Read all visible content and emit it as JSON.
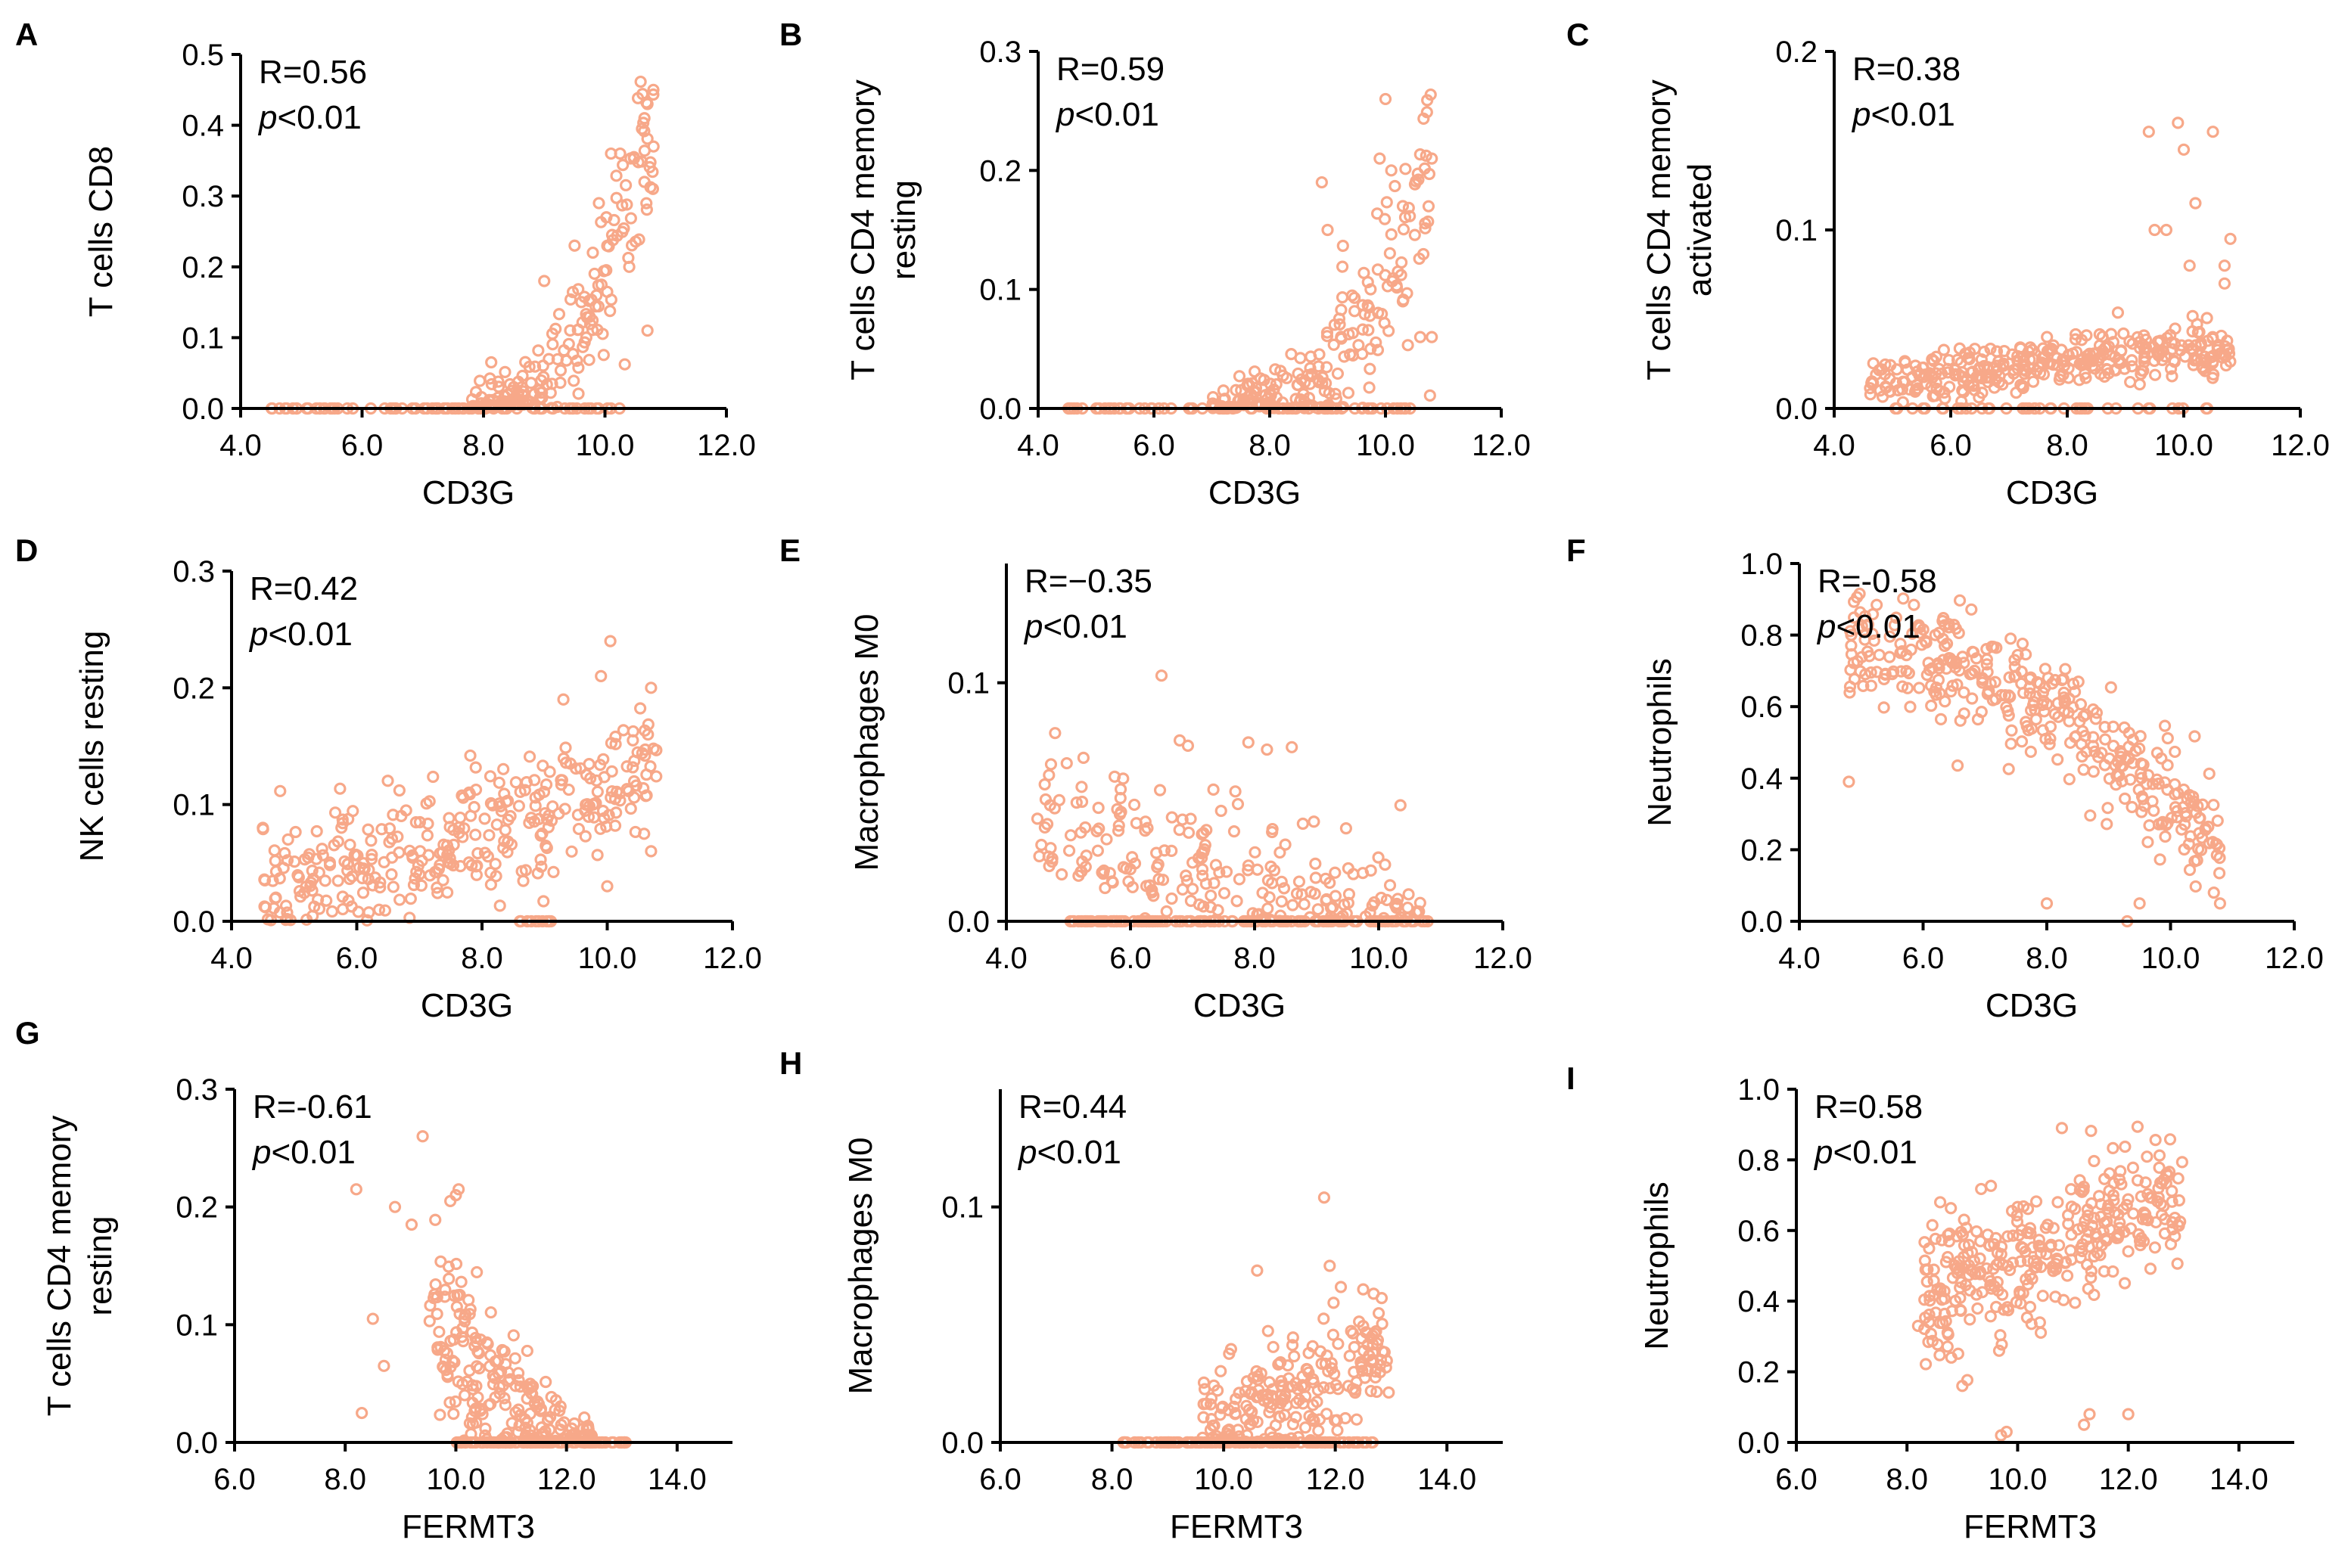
{
  "figure": {
    "point_color": "#f7a889",
    "p_prefix": "p",
    "p_suffix": "<0.01"
  },
  "chart_data": [
    {
      "id": "A",
      "type": "scatter",
      "letter": "A",
      "xlabel": "CD3G",
      "ylabel": [
        "T cells CD8"
      ],
      "xlim": [
        4,
        12
      ],
      "ylim": [
        0,
        0.5
      ],
      "xticks": [
        4,
        6,
        8,
        10,
        12
      ],
      "xtick_labels": [
        "4.0",
        "6.0",
        "8.0",
        "10.0",
        "12.0"
      ],
      "yticks": [
        0,
        0.1,
        0.2,
        0.3,
        0.4,
        0.5
      ],
      "ytick_labels": [
        "0.0",
        "0.1",
        "0.2",
        "0.3",
        "0.4",
        "0.5"
      ],
      "r_text": "R=0.56",
      "p_text": "<0.01",
      "trend": {
        "kind": "exp",
        "x_start": 7.8,
        "x_end": 10.8,
        "y_start": 0.0,
        "y_end": 0.42,
        "spread": 0.09,
        "n": 180
      },
      "baseline": {
        "x_min": 4.5,
        "x_max": 10.3,
        "n": 80
      },
      "points": [
        [
          10.7,
          0.43
        ],
        [
          10.65,
          0.41
        ],
        [
          10.8,
          0.37
        ],
        [
          10.65,
          0.32
        ],
        [
          10.1,
          0.36
        ],
        [
          10.25,
          0.36
        ],
        [
          9.9,
          0.29
        ],
        [
          10.4,
          0.2
        ],
        [
          10.7,
          0.11
        ],
        [
          9.0,
          0.18
        ],
        [
          9.5,
          0.23
        ],
        [
          9.8,
          0.22
        ]
      ]
    },
    {
      "id": "B",
      "type": "scatter",
      "letter": "B",
      "xlabel": "CD3G",
      "ylabel": [
        "T cells CD4 memory",
        "resting"
      ],
      "xlim": [
        4,
        12
      ],
      "ylim": [
        0,
        0.3
      ],
      "xticks": [
        4,
        6,
        8,
        10,
        12
      ],
      "xtick_labels": [
        "4.0",
        "6.0",
        "8.0",
        "10.0",
        "12.0"
      ],
      "yticks": [
        0,
        0.1,
        0.2,
        0.3
      ],
      "ytick_labels": [
        "0.0",
        "0.1",
        "0.2",
        "0.3"
      ],
      "r_text": "R=0.59",
      "p_text": "<0.01",
      "trend": {
        "kind": "exp",
        "x_start": 7.0,
        "x_end": 10.8,
        "y_start": 0.0,
        "y_end": 0.2,
        "spread": 0.07,
        "n": 200
      },
      "baseline": {
        "x_min": 4.5,
        "x_max": 10.5,
        "n": 70
      },
      "points": [
        [
          10.0,
          0.26
        ],
        [
          10.8,
          0.21
        ],
        [
          9.9,
          0.21
        ],
        [
          10.1,
          0.2
        ],
        [
          8.9,
          0.19
        ],
        [
          10.3,
          0.17
        ],
        [
          10.6,
          0.06
        ],
        [
          10.8,
          0.06
        ],
        [
          10.3,
          0.09
        ],
        [
          9.0,
          0.15
        ]
      ]
    },
    {
      "id": "C",
      "type": "scatter",
      "letter": "C",
      "xlabel": "CD3G",
      "ylabel": [
        "T cells CD4 memory",
        "activated"
      ],
      "xlim": [
        4,
        12
      ],
      "ylim": [
        0,
        0.2
      ],
      "xticks": [
        4,
        6,
        8,
        10,
        12
      ],
      "xtick_labels": [
        "4.0",
        "6.0",
        "8.0",
        "10.0",
        "12.0"
      ],
      "yticks": [
        0,
        0.1,
        0.2
      ],
      "ytick_labels": [
        "0.0",
        "0.1",
        "0.2"
      ],
      "r_text": "R=0.38",
      "p_text": "<0.01",
      "trend": {
        "kind": "linear",
        "x_start": 4.6,
        "x_end": 10.8,
        "y_start": 0.015,
        "y_end": 0.035,
        "spread": 0.012,
        "n": 330
      },
      "baseline": {
        "x_min": 5.0,
        "x_max": 10.5,
        "n": 40
      },
      "points": [
        [
          9.4,
          0.155
        ],
        [
          9.9,
          0.16
        ],
        [
          10.0,
          0.145
        ],
        [
          10.5,
          0.155
        ],
        [
          9.5,
          0.1
        ],
        [
          9.7,
          0.1
        ],
        [
          10.2,
          0.115
        ],
        [
          10.8,
          0.095
        ],
        [
          10.7,
          0.08
        ],
        [
          10.7,
          0.07
        ],
        [
          10.1,
          0.08
        ]
      ]
    },
    {
      "id": "D",
      "type": "scatter",
      "letter": "D",
      "xlabel": "CD3G",
      "ylabel": [
        "NK cells resting"
      ],
      "xlim": [
        4,
        12
      ],
      "ylim": [
        0,
        0.3
      ],
      "xticks": [
        4,
        6,
        8,
        10,
        12
      ],
      "xtick_labels": [
        "4.0",
        "6.0",
        "8.0",
        "10.0",
        "12.0"
      ],
      "yticks": [
        0,
        0.1,
        0.2,
        0.3
      ],
      "ytick_labels": [
        "0.0",
        "0.1",
        "0.2",
        "0.3"
      ],
      "r_text": "R=0.42",
      "p_text": "<0.01",
      "trend": {
        "kind": "linear",
        "x_start": 4.5,
        "x_end": 10.8,
        "y_start": 0.03,
        "y_end": 0.12,
        "spread": 0.05,
        "n": 330
      },
      "baseline": {
        "x_min": 8.6,
        "x_max": 9.2,
        "n": 12
      },
      "points": [
        [
          10.05,
          0.24
        ],
        [
          10.7,
          0.2
        ],
        [
          9.9,
          0.21
        ],
        [
          9.3,
          0.19
        ],
        [
          10.65,
          0.16
        ],
        [
          4.5,
          0.08
        ],
        [
          10.7,
          0.06
        ],
        [
          10.0,
          0.03
        ]
      ]
    },
    {
      "id": "E",
      "type": "scatter",
      "letter": "E",
      "xlabel": "CD3G",
      "ylabel": [
        "Macrophages M0"
      ],
      "xlim": [
        4,
        12
      ],
      "ylim": [
        0,
        0.15
      ],
      "xticks": [
        4,
        6,
        8,
        10,
        12
      ],
      "xtick_labels": [
        "4.0",
        "6.0",
        "8.0",
        "10.0",
        "12.0"
      ],
      "yticks": [
        0,
        0.1
      ],
      "ytick_labels": [
        "0.0",
        "0.1"
      ],
      "r_text": "R=−0.35",
      "p_text": "<0.01",
      "trend": {
        "kind": "linear",
        "x_start": 4.5,
        "x_end": 10.7,
        "y_start": 0.04,
        "y_end": 0.0,
        "spread": 0.025,
        "n": 210
      },
      "baseline": {
        "x_min": 5.0,
        "x_max": 10.8,
        "n": 140
      },
      "points": [
        [
          6.5,
          0.103
        ],
        [
          4.5,
          0.043
        ],
        [
          8.6,
          0.073
        ],
        [
          7.9,
          0.075
        ],
        [
          8.2,
          0.072
        ]
      ]
    },
    {
      "id": "F",
      "type": "scatter",
      "letter": "F",
      "xlabel": "CD3G",
      "ylabel": [
        "Neutrophils"
      ],
      "xlim": [
        4,
        12
      ],
      "ylim": [
        0,
        1.0
      ],
      "xticks": [
        4,
        6,
        8,
        10,
        12
      ],
      "xtick_labels": [
        "4.0",
        "6.0",
        "8.0",
        "10.0",
        "12.0"
      ],
      "yticks": [
        0,
        0.2,
        0.4,
        0.6,
        0.8,
        1.0
      ],
      "ytick_labels": [
        "0.0",
        "0.2",
        "0.4",
        "0.6",
        "0.8",
        "1.0"
      ],
      "r_text": "R=-0.58",
      "p_text": "<0.01",
      "trend": {
        "kind": "quad",
        "x_start": 4.8,
        "x_end": 10.8,
        "y_start": 0.78,
        "y_end": 0.2,
        "spread": 0.13,
        "n": 360
      },
      "baseline": {
        "x_min": 0,
        "x_max": 0,
        "n": 0
      },
      "points": [
        [
          4.8,
          0.39
        ],
        [
          8.0,
          0.05
        ],
        [
          9.3,
          0.0
        ],
        [
          10.8,
          0.05
        ],
        [
          10.7,
          0.08
        ],
        [
          9.5,
          0.05
        ]
      ]
    },
    {
      "id": "G",
      "type": "scatter",
      "letter": "G",
      "xlabel": "FERMT3",
      "ylabel": [
        "T cells CD4 memory",
        "resting"
      ],
      "xlim": [
        6,
        15
      ],
      "ylim": [
        0,
        0.3
      ],
      "xticks": [
        6,
        8,
        10,
        12,
        14
      ],
      "xtick_labels": [
        "6.0",
        "8.0",
        "10.0",
        "12.0",
        "14.0"
      ],
      "yticks": [
        0,
        0.1,
        0.2,
        0.3
      ],
      "ytick_labels": [
        "0.0",
        "0.1",
        "0.2",
        "0.3"
      ],
      "r_text": "R=-0.61",
      "p_text": "<0.01",
      "trend": {
        "kind": "decay",
        "x_start": 9.5,
        "x_end": 12.5,
        "y_start": 0.11,
        "y_end": 0.0,
        "spread": 0.06,
        "n": 220
      },
      "baseline": {
        "x_min": 10.0,
        "x_max": 13.1,
        "n": 110
      },
      "points": [
        [
          9.4,
          0.26
        ],
        [
          8.2,
          0.215
        ],
        [
          10.0,
          0.21
        ],
        [
          10.05,
          0.215
        ],
        [
          9.9,
          0.205
        ],
        [
          8.9,
          0.2
        ],
        [
          9.2,
          0.185
        ],
        [
          8.5,
          0.105
        ],
        [
          8.3,
          0.025
        ],
        [
          8.7,
          0.065
        ]
      ]
    },
    {
      "id": "H",
      "type": "scatter",
      "letter": "H",
      "xlabel": "FERMT3",
      "ylabel": [
        "Macrophages M0"
      ],
      "xlim": [
        6,
        15
      ],
      "ylim": [
        0,
        0.15
      ],
      "xticks": [
        6,
        8,
        10,
        12,
        14
      ],
      "xtick_labels": [
        "6.0",
        "8.0",
        "10.0",
        "12.0",
        "14.0"
      ],
      "yticks": [
        0,
        0.1
      ],
      "ytick_labels": [
        "0.0",
        "0.1"
      ],
      "r_text": "R=0.44",
      "p_text": "<0.01",
      "trend": {
        "kind": "linear",
        "x_start": 9.6,
        "x_end": 13.0,
        "y_start": 0.005,
        "y_end": 0.04,
        "spread": 0.022,
        "n": 220
      },
      "baseline": {
        "x_min": 8.2,
        "x_max": 12.7,
        "n": 120
      },
      "points": [
        [
          11.8,
          0.104
        ],
        [
          11.9,
          0.075
        ],
        [
          10.6,
          0.073
        ],
        [
          12.1,
          0.066
        ],
        [
          12.5,
          0.065
        ]
      ]
    },
    {
      "id": "I",
      "type": "scatter",
      "letter": "I",
      "xlabel": "FERMT3",
      "ylabel": [
        "Neutrophils"
      ],
      "xlim": [
        6,
        15
      ],
      "ylim": [
        0,
        1.0
      ],
      "xticks": [
        6,
        8,
        10,
        12,
        14
      ],
      "xtick_labels": [
        "6.0",
        "8.0",
        "10.0",
        "12.0",
        "14.0"
      ],
      "yticks": [
        0,
        0.2,
        0.4,
        0.6,
        0.8,
        1.0
      ],
      "ytick_labels": [
        "0.0",
        "0.2",
        "0.4",
        "0.6",
        "0.8",
        "1.0"
      ],
      "r_text": "R=0.58",
      "p_text": "<0.01",
      "trend": {
        "kind": "linear",
        "x_start": 8.3,
        "x_end": 13.0,
        "y_start": 0.4,
        "y_end": 0.72,
        "spread": 0.16,
        "n": 330
      },
      "baseline": {
        "x_min": 0,
        "x_max": 0,
        "n": 0
      },
      "points": [
        [
          8.2,
          0.33
        ],
        [
          8.4,
          0.34
        ],
        [
          8.6,
          0.68
        ],
        [
          9.0,
          0.16
        ],
        [
          9.7,
          0.02
        ],
        [
          9.8,
          0.03
        ],
        [
          11.2,
          0.05
        ],
        [
          11.3,
          0.08
        ],
        [
          12.0,
          0.08
        ],
        [
          10.8,
          0.89
        ]
      ]
    }
  ]
}
